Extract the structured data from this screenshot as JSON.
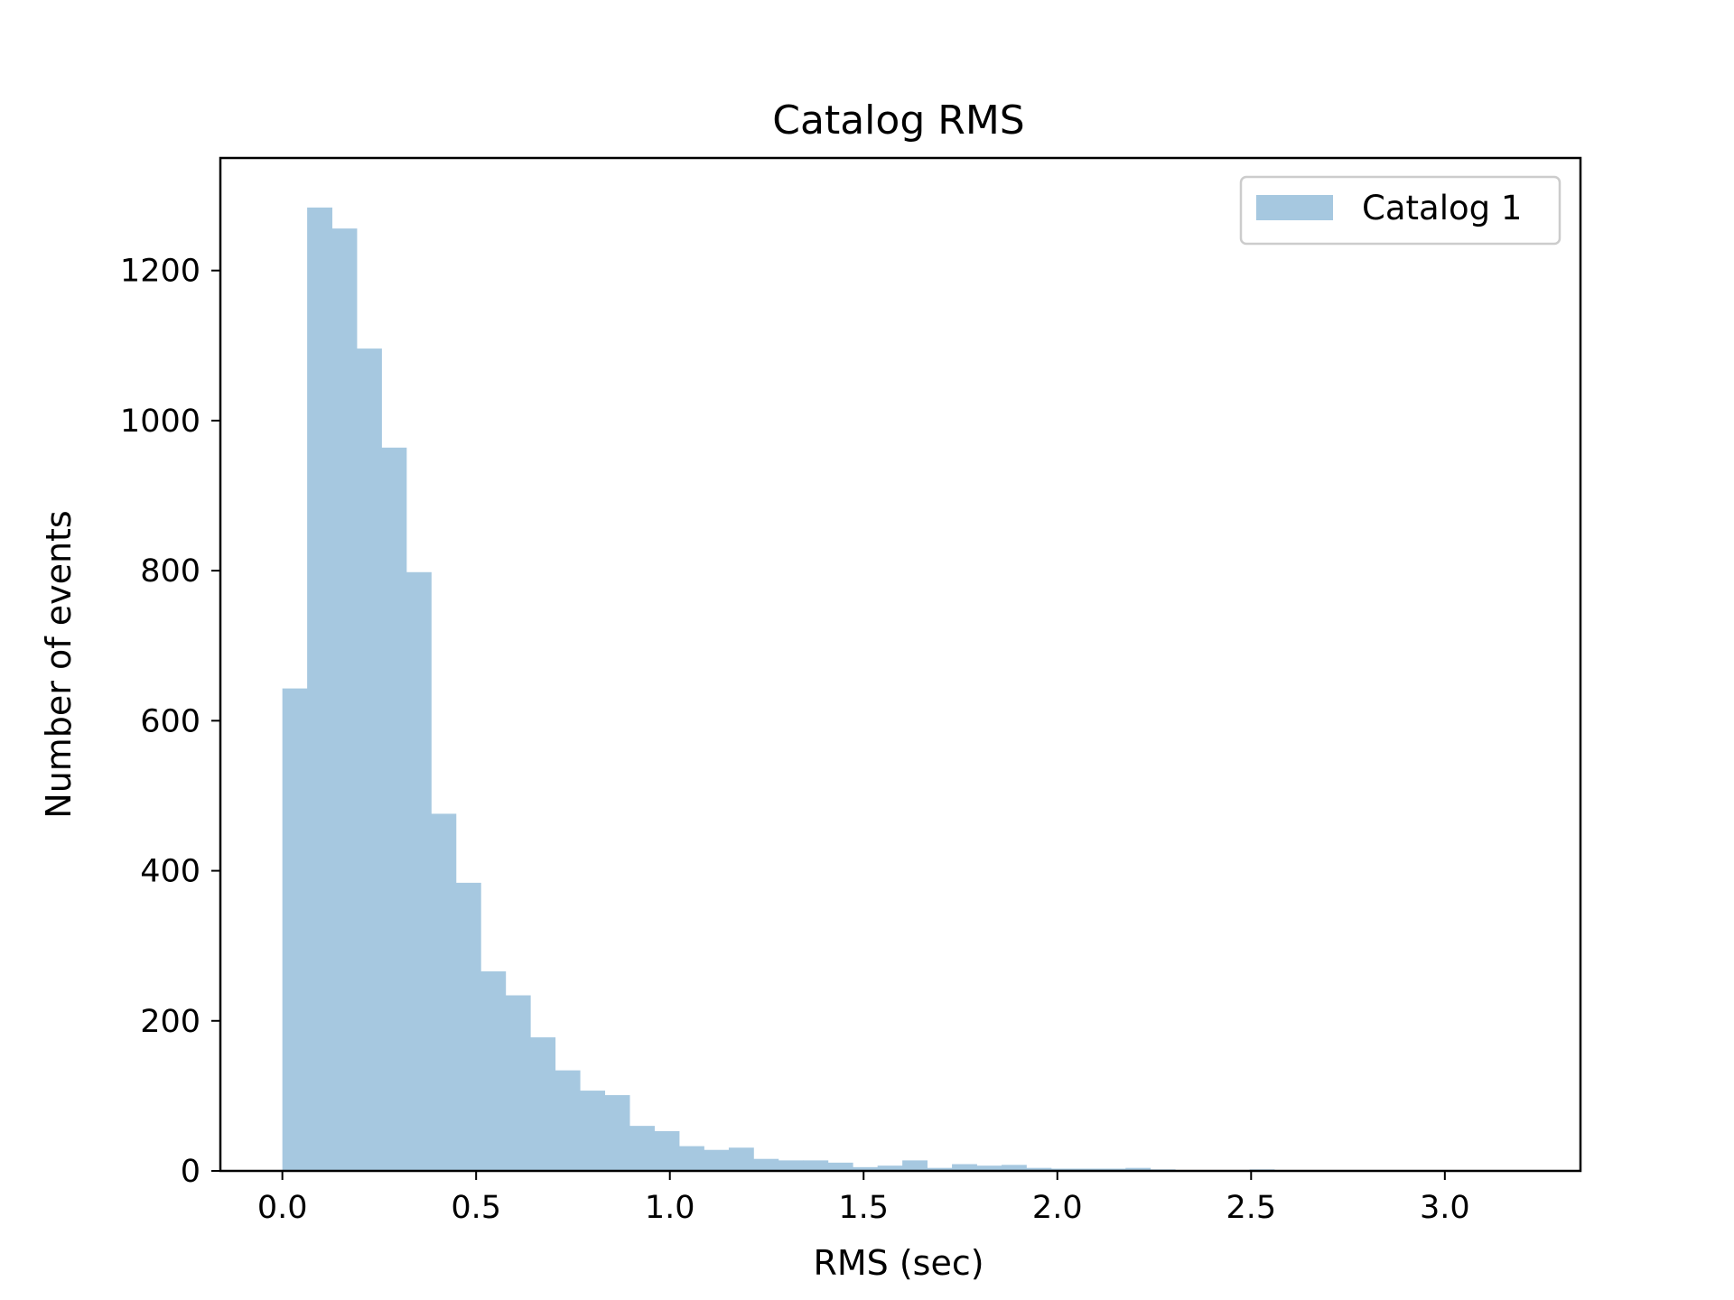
{
  "chart_data": {
    "type": "bar",
    "title": "Catalog RMS",
    "xlabel": "RMS (sec)",
    "ylabel": "Number of events",
    "xlim": [
      -0.16,
      3.35
    ],
    "ylim": [
      0,
      1350
    ],
    "xticks": [
      "0.0",
      "0.5",
      "1.0",
      "1.5",
      "2.0",
      "2.5",
      "3.0"
    ],
    "xtick_values": [
      0.0,
      0.5,
      1.0,
      1.5,
      2.0,
      2.5,
      3.0
    ],
    "yticks": [
      "0",
      "200",
      "400",
      "600",
      "800",
      "1000",
      "1200"
    ],
    "ytick_values": [
      0,
      200,
      400,
      600,
      800,
      1000,
      1200
    ],
    "bin_start": 0.0,
    "bin_width": 0.064,
    "series": [
      {
        "name": "Catalog 1",
        "color": "#a6c8e0",
        "values": [
          643,
          1284,
          1256,
          1096,
          964,
          798,
          476,
          384,
          266,
          234,
          178,
          134,
          107,
          101,
          60,
          53,
          33,
          28,
          31,
          16,
          14,
          14,
          11,
          5,
          7,
          14,
          4,
          9,
          7,
          8,
          4,
          3,
          3,
          3,
          4,
          2,
          1,
          0,
          1,
          2,
          0,
          1,
          0,
          0,
          0,
          0,
          0,
          0,
          0,
          0
        ]
      }
    ],
    "legend_position": "upper right",
    "grid": false
  }
}
